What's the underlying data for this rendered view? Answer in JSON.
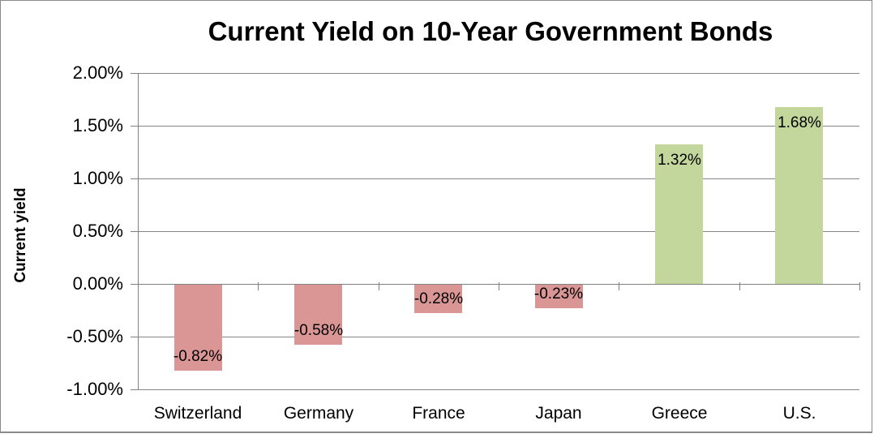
{
  "chart_data": {
    "type": "bar",
    "title": "Current Yield on 10-Year Government Bonds",
    "ylabel": "Current yield",
    "xlabel": "",
    "categories": [
      "Switzerland",
      "Germany",
      "France",
      "Japan",
      "Greece",
      "U.S."
    ],
    "values": [
      -0.82,
      -0.58,
      -0.28,
      -0.23,
      1.32,
      1.68
    ],
    "value_labels": [
      "-0.82%",
      "-0.58%",
      "-0.28%",
      "-0.23%",
      "1.32%",
      "1.68%"
    ],
    "ylim": [
      -1.0,
      2.0
    ],
    "ytick_step": 0.5,
    "ytick_labels": [
      "2.00%",
      "1.50%",
      "1.00%",
      "0.50%",
      "0.00%",
      "-0.50%",
      "-1.00%"
    ],
    "grid": true,
    "legend": "none",
    "colors": {
      "positive_bar": "#C3D69B",
      "negative_bar": "#D99694",
      "gridline": "#868686",
      "axis": "#808080",
      "text": "#000000",
      "frame_border": "#8A8A8A",
      "background": "#FFFFFF"
    }
  }
}
